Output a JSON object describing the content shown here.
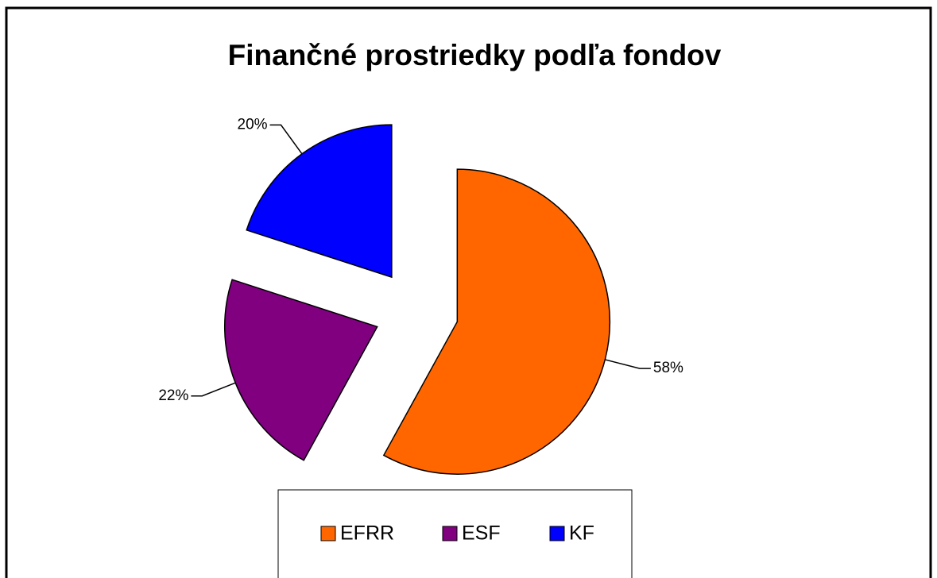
{
  "chart_data": {
    "type": "pie",
    "title": "Finančné prostriedky podľa fondov",
    "categories": [
      "EFRR",
      "ESF",
      "KF"
    ],
    "values": [
      58,
      22,
      20
    ],
    "value_labels": [
      "58%",
      "22%",
      "20%"
    ],
    "colors": [
      "#ff6600",
      "#800080",
      "#0000ff"
    ],
    "exploded": true,
    "legend": "bottom"
  }
}
